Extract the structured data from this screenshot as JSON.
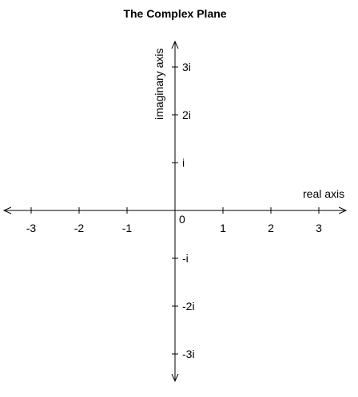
{
  "title": "The Complex Plane",
  "real_axis_label": "real axis",
  "imaginary_axis_label": "imaginary axis",
  "origin_label": "0",
  "real_ticks": [
    {
      "value": -3,
      "label": "-3"
    },
    {
      "value": -2,
      "label": "-2"
    },
    {
      "value": -1,
      "label": "-1"
    },
    {
      "value": 1,
      "label": "1"
    },
    {
      "value": 2,
      "label": "2"
    },
    {
      "value": 3,
      "label": "3"
    }
  ],
  "imaginary_ticks": [
    {
      "value": 3,
      "label": "3i"
    },
    {
      "value": 2,
      "label": "2i"
    },
    {
      "value": 1,
      "label": "i"
    },
    {
      "value": -1,
      "label": "-i"
    },
    {
      "value": -2,
      "label": "-2i"
    },
    {
      "value": -3,
      "label": "-3i"
    }
  ],
  "colors": {
    "axis": "#000000",
    "text": "#000000",
    "background": "#ffffff"
  }
}
